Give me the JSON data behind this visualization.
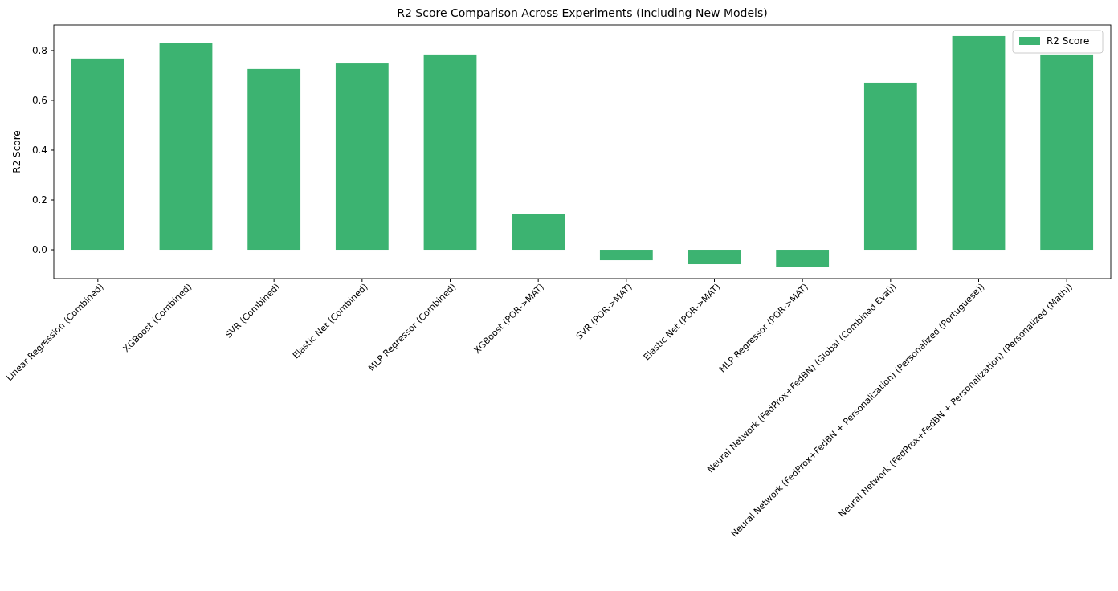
{
  "chart_data": {
    "type": "bar",
    "title": "R2 Score Comparison Across Experiments (Including New Models)",
    "ylabel": "R2 Score",
    "categories": [
      "Linear Regression (Combined)",
      "XGBoost (Combined)",
      "SVR (Combined)",
      "Elastic Net (Combined)",
      "MLP Regressor (Combined)",
      "XGBoost (POR->MAT)",
      "SVR (POR->MAT)",
      "Elastic Net (POR->MAT)",
      "MLP Regressor (POR->MAT)",
      "Neural Network (FedProx+FedBN) (Global (Combined Eval))",
      "Neural Network (FedProx+FedBN + Personalization) (Personalized (Portuguese))",
      "Neural Network (FedProx+FedBN + Personalization) (Personalized (Math))"
    ],
    "series": [
      {
        "name": "R2 Score",
        "color": "#3cb371",
        "values": [
          0.768,
          0.832,
          0.726,
          0.748,
          0.784,
          0.145,
          -0.042,
          -0.058,
          -0.068,
          0.671,
          0.858,
          0.784
        ]
      }
    ],
    "ylim": [
      -0.116,
      0.903
    ],
    "yticks": [
      {
        "value": 0,
        "label": "0.0"
      },
      0.2,
      0.4,
      0.6,
      0.8
    ],
    "legend": "top right"
  }
}
